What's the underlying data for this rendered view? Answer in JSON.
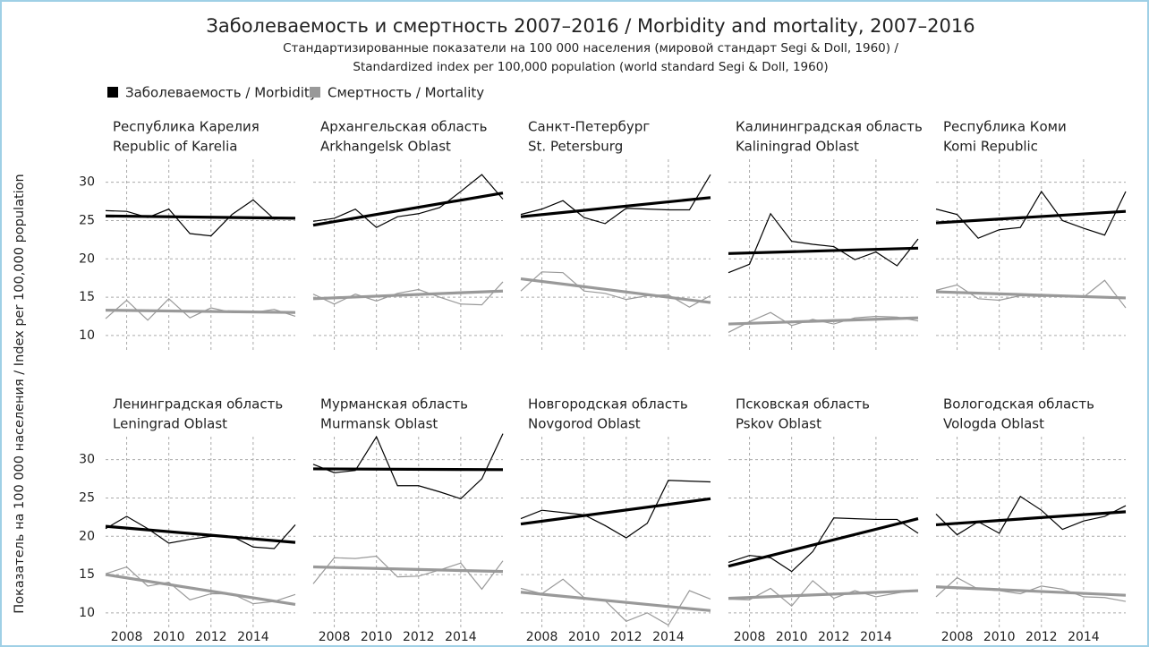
{
  "title": "Заболеваемость и смертность 2007–2016 / Morbidity and mortality, 2007–2016",
  "subtitle": [
    "Стандартизированные показатели на 100 000 населения (мировой стандарт Segi & Doll, 1960) /",
    "Standardized index per 100,000 population (world standard Segi & Doll, 1960)"
  ],
  "y_label": "Показатель на 100 000 населения / Index per 100,000 population",
  "chart_data": [
    {
      "type": "line",
      "title": [
        "Республика Карелия",
        "Republic of Karelia"
      ],
      "x": [
        2007,
        2008,
        2009,
        2010,
        2011,
        2012,
        2013,
        2014,
        2015,
        2016
      ],
      "xlim": [
        2007,
        2016
      ],
      "xticks": [
        2008,
        2010,
        2012,
        2014
      ],
      "ylim": [
        8,
        33
      ],
      "yticks": [
        10,
        15,
        20,
        25,
        30
      ],
      "grid": true,
      "series": [
        {
          "name": "Заболеваемость / Morbidity",
          "color": "#000000",
          "values": [
            26.3,
            26.2,
            25.4,
            26.5,
            23.3,
            23.0,
            25.8,
            27.7,
            25.2,
            25.4
          ],
          "trend": [
            25.6,
            25.3
          ]
        },
        {
          "name": "Смертность / Mortality",
          "color": "#999999",
          "values": [
            12.2,
            14.6,
            12.0,
            14.8,
            12.3,
            13.6,
            13.0,
            13.0,
            13.4,
            12.5
          ],
          "trend": [
            13.3,
            13.0
          ]
        }
      ]
    },
    {
      "type": "line",
      "title": [
        "Архангельская область",
        "Arkhangelsk Oblast"
      ],
      "x": [
        2007,
        2008,
        2009,
        2010,
        2011,
        2012,
        2013,
        2014,
        2015,
        2016
      ],
      "xlim": [
        2007,
        2016
      ],
      "xticks": [
        2008,
        2010,
        2012,
        2014
      ],
      "ylim": [
        8,
        33
      ],
      "yticks": [
        10,
        15,
        20,
        25,
        30
      ],
      "grid": true,
      "series": [
        {
          "name": "Заболеваемость / Morbidity",
          "color": "#000000",
          "values": [
            24.9,
            25.3,
            26.5,
            24.1,
            25.5,
            25.9,
            26.7,
            28.8,
            31.0,
            27.8
          ],
          "trend": [
            24.4,
            28.6
          ]
        },
        {
          "name": "Смертность / Mortality",
          "color": "#999999",
          "values": [
            15.4,
            14.1,
            15.4,
            14.5,
            15.5,
            16.0,
            15.0,
            14.1,
            14.0,
            17.0
          ],
          "trend": [
            14.8,
            15.8
          ]
        }
      ]
    },
    {
      "type": "line",
      "title": [
        "Санкт-Петербург",
        "St. Petersburg"
      ],
      "x": [
        2007,
        2008,
        2009,
        2010,
        2011,
        2012,
        2013,
        2014,
        2015,
        2016
      ],
      "xlim": [
        2007,
        2016
      ],
      "xticks": [
        2008,
        2010,
        2012,
        2014
      ],
      "ylim": [
        8,
        33
      ],
      "yticks": [
        10,
        15,
        20,
        25,
        30
      ],
      "grid": true,
      "series": [
        {
          "name": "Заболеваемость / Morbidity",
          "color": "#000000",
          "values": [
            25.8,
            26.5,
            27.6,
            25.4,
            24.6,
            26.6,
            26.5,
            26.4,
            26.4,
            31.0
          ],
          "trend": [
            25.5,
            28.0
          ]
        },
        {
          "name": "Смертность / Mortality",
          "color": "#999999",
          "values": [
            15.8,
            18.3,
            18.2,
            15.8,
            15.5,
            14.7,
            15.2,
            15.3,
            13.7,
            15.2
          ],
          "trend": [
            17.4,
            14.3
          ]
        }
      ]
    },
    {
      "type": "line",
      "title": [
        "Калининградская область",
        "Kaliningrad Oblast"
      ],
      "x": [
        2007,
        2008,
        2009,
        2010,
        2011,
        2012,
        2013,
        2014,
        2015,
        2016
      ],
      "xlim": [
        2007,
        2016
      ],
      "xticks": [
        2008,
        2010,
        2012,
        2014
      ],
      "ylim": [
        8,
        33
      ],
      "yticks": [
        10,
        15,
        20,
        25,
        30
      ],
      "grid": true,
      "series": [
        {
          "name": "Заболеваемость / Morbidity",
          "color": "#000000",
          "values": [
            18.2,
            19.3,
            25.9,
            22.3,
            21.9,
            21.6,
            19.9,
            20.9,
            19.1,
            22.6
          ],
          "trend": [
            20.7,
            21.4
          ]
        },
        {
          "name": "Смертность / Mortality",
          "color": "#999999",
          "values": [
            10.4,
            11.8,
            13.0,
            11.3,
            12.1,
            11.5,
            12.3,
            12.5,
            12.4,
            11.9
          ],
          "trend": [
            11.5,
            12.3
          ]
        }
      ]
    },
    {
      "type": "line",
      "title": [
        "Республика Коми",
        "Komi Republic"
      ],
      "x": [
        2007,
        2008,
        2009,
        2010,
        2011,
        2012,
        2013,
        2014,
        2015,
        2016
      ],
      "xlim": [
        2007,
        2016
      ],
      "xticks": [
        2008,
        2010,
        2012,
        2014
      ],
      "ylim": [
        8,
        33
      ],
      "yticks": [
        10,
        15,
        20,
        25,
        30
      ],
      "grid": true,
      "series": [
        {
          "name": "Заболеваемость / Morbidity",
          "color": "#000000",
          "values": [
            26.5,
            25.8,
            22.7,
            23.8,
            24.1,
            28.8,
            25.0,
            24.0,
            23.1,
            28.8
          ],
          "trend": [
            24.7,
            26.2
          ]
        },
        {
          "name": "Смертность / Mortality",
          "color": "#999999",
          "values": [
            15.9,
            16.6,
            14.8,
            14.6,
            15.2,
            15.1,
            15.2,
            15.0,
            17.2,
            13.6
          ],
          "trend": [
            15.7,
            14.9
          ]
        }
      ]
    },
    {
      "type": "line",
      "title": [
        "Ленинградская область",
        "Leningrad Oblast"
      ],
      "x": [
        2007,
        2008,
        2009,
        2010,
        2011,
        2012,
        2013,
        2014,
        2015,
        2016
      ],
      "xlim": [
        2007,
        2016
      ],
      "xticks": [
        2008,
        2010,
        2012,
        2014
      ],
      "ylim": [
        8,
        33
      ],
      "yticks": [
        10,
        15,
        20,
        25,
        30
      ],
      "grid": true,
      "series": [
        {
          "name": "Заболеваемость / Morbidity",
          "color": "#000000",
          "values": [
            21.0,
            22.6,
            21.0,
            19.1,
            19.6,
            20.0,
            20.0,
            18.6,
            18.4,
            21.5
          ],
          "trend": [
            21.3,
            19.2
          ]
        },
        {
          "name": "Смертность / Mortality",
          "color": "#999999",
          "values": [
            15.1,
            16.0,
            13.5,
            14.0,
            11.7,
            12.5,
            12.5,
            11.2,
            11.5,
            12.4
          ],
          "trend": [
            15.0,
            11.1
          ]
        }
      ]
    },
    {
      "type": "line",
      "title": [
        "Мурманская область",
        "Murmansk Oblast"
      ],
      "x": [
        2007,
        2008,
        2009,
        2010,
        2011,
        2012,
        2013,
        2014,
        2015,
        2016
      ],
      "xlim": [
        2007,
        2016
      ],
      "xticks": [
        2008,
        2010,
        2012,
        2014
      ],
      "ylim": [
        8,
        33
      ],
      "yticks": [
        10,
        15,
        20,
        25,
        30
      ],
      "grid": true,
      "series": [
        {
          "name": "Заболеваемость / Morbidity",
          "color": "#000000",
          "values": [
            29.4,
            28.3,
            28.6,
            33.0,
            26.6,
            26.6,
            25.8,
            24.9,
            27.5,
            33.4
          ],
          "trend": [
            28.8,
            28.7
          ]
        },
        {
          "name": "Смертность / Mortality",
          "color": "#999999",
          "values": [
            13.8,
            17.2,
            17.1,
            17.4,
            14.7,
            14.8,
            15.6,
            16.5,
            13.1,
            16.8
          ],
          "trend": [
            16.0,
            15.4
          ]
        }
      ]
    },
    {
      "type": "line",
      "title": [
        "Новгородская область",
        "Novgorod Oblast"
      ],
      "x": [
        2007,
        2008,
        2009,
        2010,
        2011,
        2012,
        2013,
        2014,
        2015,
        2016
      ],
      "xlim": [
        2007,
        2016
      ],
      "xticks": [
        2008,
        2010,
        2012,
        2014
      ],
      "ylim": [
        8,
        33
      ],
      "yticks": [
        10,
        15,
        20,
        25,
        30
      ],
      "grid": true,
      "series": [
        {
          "name": "Заболеваемость / Morbidity",
          "color": "#000000",
          "values": [
            22.3,
            23.4,
            23.1,
            22.8,
            21.4,
            19.8,
            21.7,
            27.3,
            27.2,
            27.1
          ],
          "trend": [
            21.6,
            24.9
          ]
        },
        {
          "name": "Смертность / Mortality",
          "color": "#999999",
          "values": [
            13.2,
            12.5,
            14.4,
            12.0,
            11.6,
            8.9,
            10.0,
            8.4,
            12.9,
            11.8
          ],
          "trend": [
            12.7,
            10.3
          ]
        }
      ]
    },
    {
      "type": "line",
      "title": [
        "Псковская область",
        "Pskov Oblast"
      ],
      "x": [
        2007,
        2008,
        2009,
        2010,
        2011,
        2012,
        2013,
        2014,
        2015,
        2016
      ],
      "xlim": [
        2007,
        2016
      ],
      "xticks": [
        2008,
        2010,
        2012,
        2014
      ],
      "ylim": [
        8,
        33
      ],
      "yticks": [
        10,
        15,
        20,
        25,
        30
      ],
      "grid": true,
      "series": [
        {
          "name": "Заболеваемость / Morbidity",
          "color": "#000000",
          "values": [
            16.6,
            17.5,
            17.2,
            15.4,
            18.0,
            22.4,
            22.3,
            22.2,
            22.2,
            20.4
          ],
          "trend": [
            16.1,
            22.3
          ]
        },
        {
          "name": "Смертность / Mortality",
          "color": "#999999",
          "values": [
            11.8,
            11.7,
            13.2,
            10.9,
            14.2,
            11.9,
            12.9,
            12.1,
            12.6,
            13.0
          ],
          "trend": [
            11.9,
            12.9
          ]
        }
      ]
    },
    {
      "type": "line",
      "title": [
        "Вологодская область",
        "Vologda Oblast"
      ],
      "x": [
        2007,
        2008,
        2009,
        2010,
        2011,
        2012,
        2013,
        2014,
        2015,
        2016
      ],
      "xlim": [
        2007,
        2016
      ],
      "xticks": [
        2008,
        2010,
        2012,
        2014
      ],
      "ylim": [
        8,
        33
      ],
      "yticks": [
        10,
        15,
        20,
        25,
        30
      ],
      "grid": true,
      "series": [
        {
          "name": "Заболеваемость / Morbidity",
          "color": "#000000",
          "values": [
            22.9,
            20.2,
            21.9,
            20.4,
            25.2,
            23.4,
            20.9,
            22.0,
            22.6,
            24.0
          ],
          "trend": [
            21.5,
            23.2
          ]
        },
        {
          "name": "Смертность / Mortality",
          "color": "#999999",
          "values": [
            12.1,
            14.6,
            13.1,
            12.9,
            12.5,
            13.5,
            13.1,
            12.1,
            12.0,
            11.5
          ],
          "trend": [
            13.4,
            12.3
          ]
        }
      ]
    }
  ]
}
